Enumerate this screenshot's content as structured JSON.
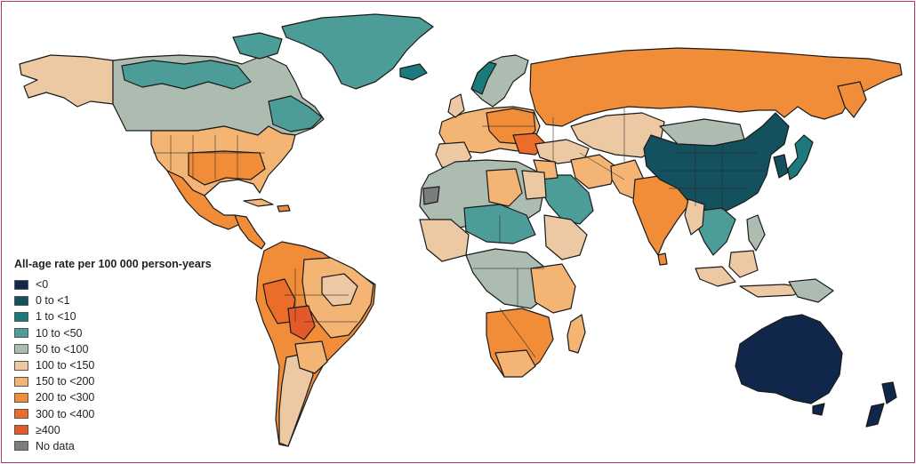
{
  "legend": {
    "title": "All-age rate per 100 000 person-years",
    "items": [
      {
        "label": "<0",
        "color": "#10264a"
      },
      {
        "label": "0 to <1",
        "color": "#14515e"
      },
      {
        "label": "1 to <10",
        "color": "#1d7a7c"
      },
      {
        "label": "10 to <50",
        "color": "#4c9c97"
      },
      {
        "label": "50 to <100",
        "color": "#adbcb1"
      },
      {
        "label": "100 to <150",
        "color": "#ecc9a3"
      },
      {
        "label": "150 to <200",
        "color": "#f4b574"
      },
      {
        "label": "200 to <300",
        "color": "#f18d38"
      },
      {
        "label": "300 to <400",
        "color": "#ec6d2a"
      },
      {
        "label": "≥400",
        "color": "#e4582a"
      },
      {
        "label": "No data",
        "color": "#7d7d7d"
      }
    ]
  },
  "colors": {
    "frame_border": "#b0356f",
    "country_outline": "#1a1a1a"
  }
}
